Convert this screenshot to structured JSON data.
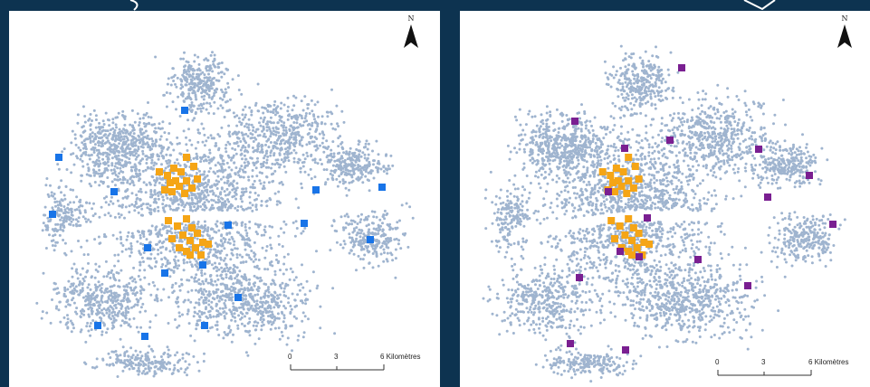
{
  "maps": [
    {
      "north_label": "N",
      "scale": {
        "ticks": [
          "0",
          "3",
          "6 Kilomètres"
        ]
      },
      "marker_groups": [
        {
          "name": "orange-cluster",
          "color": "#f5a516",
          "count": 30
        },
        {
          "name": "blue-markers",
          "color": "#1874e8",
          "count": 16
        }
      ]
    },
    {
      "north_label": "N",
      "scale": {
        "ticks": [
          "0",
          "3",
          "6 Kilomètres"
        ]
      },
      "marker_groups": [
        {
          "name": "orange-cluster",
          "color": "#f5a516",
          "count": 30
        },
        {
          "name": "purple-markers",
          "color": "#7a1f91",
          "count": 16
        }
      ]
    }
  ],
  "point_color": "#9fb4cf",
  "background_color": "#0d3350"
}
